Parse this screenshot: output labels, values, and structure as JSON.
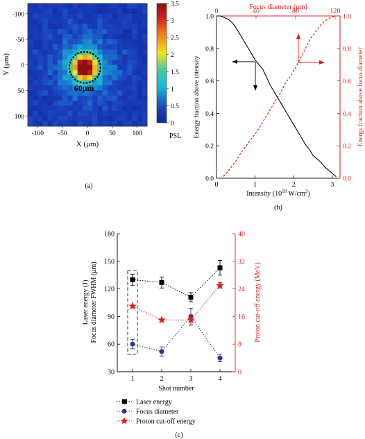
{
  "panel_labels": {
    "a": "(a)",
    "b": "(b)",
    "c": "(c)"
  },
  "chart_data": [
    {
      "id": "a",
      "type": "heatmap",
      "xlabel": "X (μm)",
      "ylabel": "Y (μm)",
      "xticks": [
        "-100",
        "-50",
        "0",
        "50",
        "100"
      ],
      "yticks": [
        "-100",
        "-50",
        "0",
        "50",
        "100"
      ],
      "xlim": [
        -120,
        120
      ],
      "ylim": [
        -120,
        120
      ],
      "y_inverted": true,
      "colorbar": {
        "label": "PSL",
        "ticks": [
          "0",
          "0.5",
          "1",
          "1.5",
          "2",
          "2.5",
          "3",
          "3.5"
        ],
        "range": [
          0,
          3.5
        ]
      },
      "annotation": "60μm",
      "spot": {
        "center_x": -5,
        "center_y": 5,
        "diameter_um": 60,
        "peak_psl": 3.4,
        "background_psl": 0.3
      },
      "colors": {
        "low": "#1a3fbf",
        "mid": "#19b6d8",
        "yellow": "#f1e41c",
        "high": "#d41e1e",
        "circle": "#000000"
      }
    },
    {
      "id": "b",
      "type": "line",
      "xlabel": "Intensity (10",
      "xlabel_sup": "18",
      "xlabel_end": " W/cm",
      "xlabel_sup2": "2",
      "xlabel_close": ")",
      "ylabel_left": "Energy fraction above intensity",
      "ylabel_right": "Energy fraction above focus diameter",
      "top_axis_label": "Focus diameter (μm)",
      "xlim": [
        0,
        3.2
      ],
      "ylim": [
        0,
        1.0
      ],
      "top_xlim": [
        0,
        125
      ],
      "xticks": [
        "0",
        "1",
        "2",
        "3"
      ],
      "top_xticks": [
        "0",
        "40",
        "80",
        "120"
      ],
      "yticks_left": [
        "0.0",
        "0.2",
        "0.4",
        "0.6",
        "0.8",
        "1.0"
      ],
      "yticks_right": [
        "0.0",
        "0.2",
        "0.4",
        "0.6",
        "0.8",
        "1.0"
      ],
      "series": [
        {
          "axis": "bottom-left",
          "color": "#000000",
          "style": "solid",
          "x": [
            0,
            0.1,
            0.2,
            0.3,
            0.4,
            0.5,
            0.6,
            0.7,
            0.8,
            0.9,
            1.0,
            1.1,
            1.2,
            1.3,
            1.4,
            1.5,
            1.6,
            1.7,
            1.8,
            1.9,
            2.0,
            2.1,
            2.2,
            2.3,
            2.4,
            2.5,
            2.6,
            2.7,
            2.8,
            2.9,
            3.0,
            3.1
          ],
          "y": [
            1.0,
            1.0,
            0.99,
            0.98,
            0.96,
            0.93,
            0.89,
            0.85,
            0.81,
            0.77,
            0.73,
            0.7,
            0.67,
            0.62,
            0.57,
            0.53,
            0.49,
            0.45,
            0.41,
            0.37,
            0.33,
            0.29,
            0.25,
            0.21,
            0.18,
            0.14,
            0.12,
            0.1,
            0.07,
            0.05,
            0.03,
            0.01
          ]
        },
        {
          "axis": "top-right",
          "color": "#e02020",
          "style": "dashed",
          "x": [
            0,
            5,
            10,
            15,
            20,
            25,
            30,
            35,
            40,
            45,
            50,
            55,
            60,
            65,
            70,
            75,
            80,
            85,
            90,
            95,
            100,
            105,
            110,
            115,
            120
          ],
          "y": [
            0.0,
            0.0,
            0.03,
            0.07,
            0.11,
            0.16,
            0.2,
            0.24,
            0.28,
            0.33,
            0.38,
            0.43,
            0.48,
            0.53,
            0.59,
            0.63,
            0.68,
            0.74,
            0.8,
            0.86,
            0.9,
            0.94,
            0.97,
            0.99,
            1.0
          ]
        }
      ]
    },
    {
      "id": "c",
      "type": "line",
      "xlabel": "Shot number",
      "ylabel_left": [
        "Laser energy (J)",
        "Focus diameter FWHM (μm)"
      ],
      "ylabel_right": "Proton cut-off energy (MeV)",
      "categories": [
        "1",
        "2",
        "3",
        "4"
      ],
      "ylim_left": [
        30,
        180
      ],
      "ylim_right": [
        0,
        40
      ],
      "yticks_left": [
        "30",
        "60",
        "90",
        "120",
        "150",
        "180"
      ],
      "yticks_right": [
        "0",
        "8",
        "16",
        "24",
        "32",
        "40"
      ],
      "series": [
        {
          "name": "Laser energy",
          "axis": "left",
          "marker": "square",
          "color": "#000000",
          "values": [
            130,
            127,
            111,
            143
          ],
          "errors": [
            6,
            6,
            5,
            8
          ]
        },
        {
          "name": "Focus diameter",
          "axis": "left",
          "marker": "circle",
          "color": "#3a2f8f",
          "values": [
            60,
            52,
            90,
            45
          ],
          "errors": [
            5,
            5,
            9,
            4
          ]
        },
        {
          "name": "Proton cut-off energy",
          "axis": "right",
          "marker": "star",
          "color": "#e02020",
          "values": [
            19,
            15,
            15,
            25
          ],
          "errors": [
            0,
            0,
            1.5,
            0.8
          ]
        }
      ],
      "highlight_category": "1",
      "highlight_color": "#2e8b3a"
    }
  ]
}
